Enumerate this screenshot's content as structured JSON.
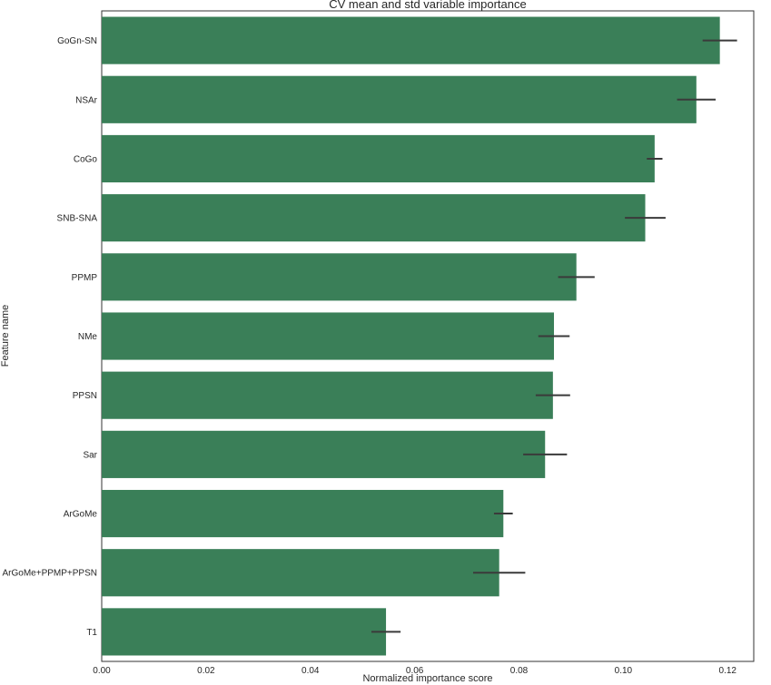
{
  "chart_data": {
    "type": "bar",
    "orientation": "horizontal",
    "title": "CV mean and std variable importance",
    "xlabel": "Normalized importance score",
    "ylabel": "Feature name",
    "xlim": [
      0.0,
      0.125
    ],
    "xticks": [
      "0.00",
      "0.02",
      "0.04",
      "0.06",
      "0.08",
      "0.10",
      "0.12"
    ],
    "grid": false,
    "legend": "none",
    "bar_color": "#3a7f58",
    "error_bar_color": "#3a3a3a",
    "categories": [
      "GoGn-SN",
      "NSAr",
      "CoGo",
      "SNB-SNA",
      "PPMP",
      "NMe",
      "PPSN",
      "Sar",
      "ArGoMe",
      "ArGoMe+PPMP+PPSN",
      "T1"
    ],
    "values": [
      0.1185,
      0.114,
      0.106,
      0.1042,
      0.091,
      0.0867,
      0.0865,
      0.085,
      0.077,
      0.0762,
      0.0545
    ],
    "errors": [
      0.0033,
      0.0037,
      0.0015,
      0.0039,
      0.0035,
      0.003,
      0.0033,
      0.0042,
      0.0018,
      0.005,
      0.0028
    ]
  }
}
